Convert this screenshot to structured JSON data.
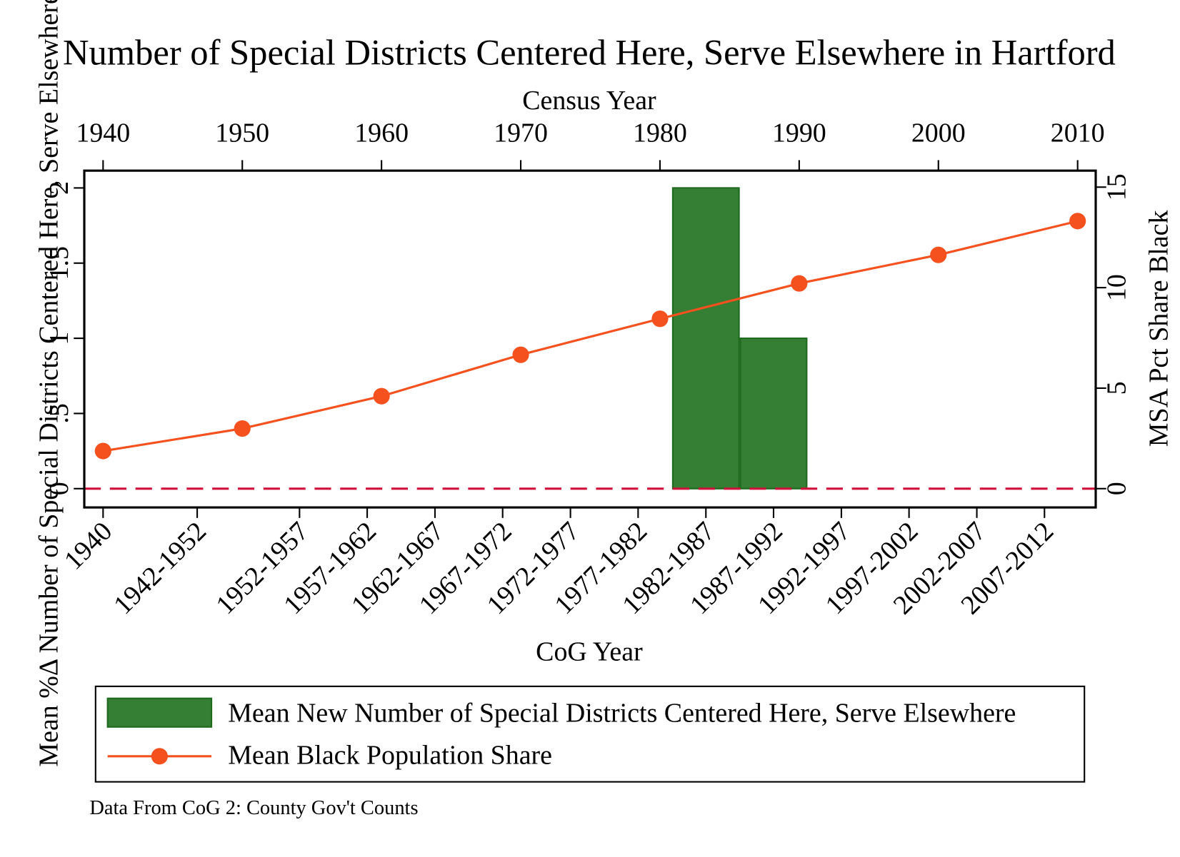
{
  "chart_data": {
    "type": "bar_line",
    "title": "Number of Special Districts Centered Here, Serve Elsewhere in Hartford",
    "x2label": "Census Year",
    "xlabel": "CoG Year",
    "ylabel": "Mean %Δ Number of Special Districts Centered Here, Serve Elsewhere",
    "y2label": "MSA Pct Share Black",
    "note": "Data From CoG 2: County Gov't Counts",
    "xlim": [
      1938.65,
      2011.3
    ],
    "x2ticks": [
      1940,
      1950,
      1960,
      1970,
      1980,
      1990,
      2000,
      2010
    ],
    "xticks": [
      1940,
      {
        "value": 1946.76,
        "label": "1942-1952"
      },
      {
        "value": 1954.11,
        "label": "1952-1957"
      },
      {
        "value": 1958.97,
        "label": "1957-1962"
      },
      {
        "value": 1963.84,
        "label": "1962-1967"
      },
      {
        "value": 1968.7,
        "label": "1967-1972"
      },
      {
        "value": 1973.57,
        "label": "1972-1977"
      },
      {
        "value": 1978.43,
        "label": "1977-1982"
      },
      {
        "value": 1983.3,
        "label": "1982-1987"
      },
      {
        "value": 1988.16,
        "label": "1987-1992"
      },
      {
        "value": 1993.03,
        "label": "1992-1997"
      },
      {
        "value": 1997.89,
        "label": "1997-2002"
      },
      {
        "value": 2002.76,
        "label": "2002-2007"
      },
      {
        "value": 2007.62,
        "label": "2007-2012"
      }
    ],
    "ylim": [
      -0.125,
      2.115
    ],
    "yticks": [
      0,
      {
        "value": 0.5,
        "label": ".5"
      },
      1,
      {
        "value": 1.5,
        "label": "1.5"
      },
      2
    ],
    "y2lim": [
      -0.935,
      15.82
    ],
    "y2ticks": [
      0,
      5,
      10,
      15
    ],
    "yline": 0,
    "yline_color": "#d0103a",
    "series": [
      {
        "name": "Mean New Number of Special Districts Centered Here, Serve Elsewhere",
        "type": "bar",
        "color": "#357f35",
        "x": [
          1983.3,
          1988.16
        ],
        "values": [
          2,
          1
        ]
      },
      {
        "name": "Mean Black Population Share",
        "type": "line",
        "axis": "y2",
        "color": "#f4511e",
        "x": [
          1940,
          1950,
          1960,
          1970,
          1980,
          1990,
          2000,
          2010
        ],
        "values": [
          1.87,
          2.99,
          4.6,
          6.66,
          8.45,
          10.21,
          11.63,
          13.31
        ]
      }
    ]
  }
}
